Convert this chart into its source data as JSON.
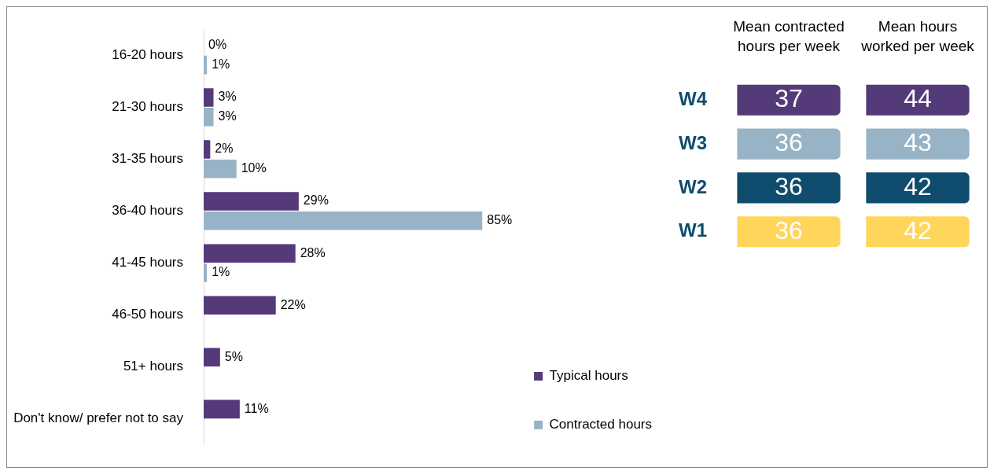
{
  "chart_data": [
    {
      "type": "bar",
      "orientation": "horizontal",
      "categories": [
        "16-20 hours",
        "21-30 hours",
        "31-35 hours",
        "36-40 hours",
        "41-45 hours",
        "46-50 hours",
        "51+ hours",
        "Don't know/ prefer not to say"
      ],
      "series": [
        {
          "name": "Typical hours",
          "color": "#553a7a",
          "values": [
            0,
            3,
            2,
            29,
            28,
            22,
            5,
            11
          ],
          "value_labels": [
            "0%",
            "3%",
            "2%",
            "29%",
            "28%",
            "22%",
            "5%",
            "11%"
          ]
        },
        {
          "name": "Contracted hours",
          "color": "#98b3c6",
          "values": [
            1,
            3,
            10,
            85,
            1,
            null,
            null,
            null
          ],
          "value_labels": [
            "1%",
            "3%",
            "10%",
            "85%",
            "1%",
            null,
            null,
            null
          ]
        }
      ],
      "tick_labels": "y",
      "legend": "bottom right"
    },
    {
      "type": "heatmap",
      "categories": [
        "Mean contracted hours per week",
        "Mean hours worked per week"
      ],
      "y_categories": [
        "W4",
        "W3",
        "W2",
        "W1"
      ],
      "cells": [
        [
          37,
          44
        ],
        [
          36,
          43
        ],
        [
          36,
          42
        ],
        [
          36,
          42
        ]
      ],
      "colors": [
        [
          "#553a7a",
          "#553a7a"
        ],
        [
          "#98b3c6",
          "#98b3c6"
        ],
        [
          "#0f4c6e",
          "#0f4c6e"
        ],
        [
          "#ffd55a",
          "#ffd55a"
        ]
      ],
      "data_labels": true
    }
  ]
}
